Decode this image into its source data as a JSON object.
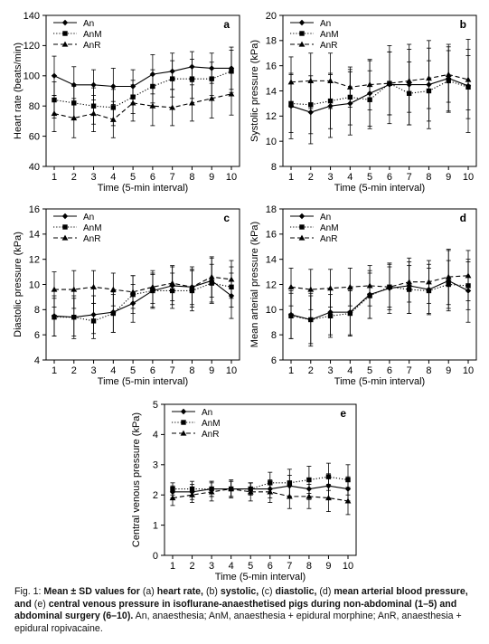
{
  "colors": {
    "ink": "#000000",
    "background": "#ffffff"
  },
  "caption": {
    "fig_label": "Fig. 1:",
    "bold1": "Mean ± SD values for",
    "t_a": "(a)",
    "bold2": "heart rate,",
    "t_b": "(b)",
    "bold3": "systolic,",
    "t_c": "(c)",
    "bold4": "diastolic,",
    "t_d": "(d)",
    "bold5": "mean arterial blood pressure, and",
    "t_e": "(e)",
    "bold6": "central venous pressure in isoflurane-anaesthetised pigs during non-abdominal (1–5) and abdominal surgery (6–10).",
    "tail": "An, anaesthesia; AnM, anaesthesia + epidural morphine; AnR, anaesthesia + epidural ropivacaine."
  },
  "chart_data": [
    {
      "panel": "a",
      "type": "line",
      "xlabel": "Time (5-min interval)",
      "ylabel": "Heart rate (beats/min)",
      "x": [
        1,
        2,
        3,
        4,
        5,
        6,
        7,
        8,
        9,
        10
      ],
      "ylim": [
        40,
        140
      ],
      "yticks": [
        40,
        60,
        80,
        100,
        120,
        140
      ],
      "legend": "top-left",
      "series": [
        {
          "name": "An",
          "marker": "diamond",
          "line": "solid",
          "values": [
            100,
            94,
            94,
            93,
            93,
            101,
            103,
            106,
            105,
            105
          ],
          "sd": [
            13,
            12,
            10,
            12,
            11,
            13,
            12,
            10,
            10,
            14
          ]
        },
        {
          "name": "AnM",
          "marker": "square",
          "line": "dotted",
          "values": [
            84,
            82,
            80,
            79,
            86,
            93,
            98,
            98,
            98,
            103
          ],
          "sd": [
            12,
            11,
            12,
            12,
            11,
            11,
            12,
            13,
            11,
            14
          ]
        },
        {
          "name": "AnR",
          "marker": "triangle",
          "line": "dashed",
          "values": [
            75,
            72,
            75,
            71,
            82,
            80,
            79,
            82,
            85,
            88
          ],
          "sd": [
            12,
            13,
            12,
            12,
            12,
            13,
            12,
            12,
            13,
            14
          ]
        }
      ]
    },
    {
      "panel": "b",
      "type": "line",
      "xlabel": "Time (5-min interval)",
      "ylabel": "Systolic pressure (kPa)",
      "x": [
        1,
        2,
        3,
        4,
        5,
        6,
        7,
        8,
        9,
        10
      ],
      "ylim": [
        8,
        20
      ],
      "yticks": [
        8,
        10,
        12,
        14,
        16,
        18,
        20
      ],
      "legend": "top-left",
      "series": [
        {
          "name": "An",
          "marker": "diamond",
          "line": "solid",
          "values": [
            12.8,
            12.3,
            12.8,
            13.0,
            13.8,
            14.5,
            14.5,
            14.5,
            15.0,
            14.4
          ],
          "sd": [
            2.6,
            2.5,
            2.5,
            2.5,
            2.6,
            3.1,
            3.2,
            3.5,
            2.7,
            3.7
          ]
        },
        {
          "name": "AnM",
          "marker": "square",
          "line": "dotted",
          "values": [
            13.0,
            12.9,
            13.2,
            13.5,
            13.3,
            14.6,
            13.8,
            14.0,
            14.8,
            14.3
          ],
          "sd": [
            2.3,
            2.3,
            2.2,
            2.2,
            2.3,
            2.5,
            2.5,
            2.4,
            2.4,
            2.5
          ]
        },
        {
          "name": "AnR",
          "marker": "triangle",
          "line": "dashed",
          "values": [
            14.7,
            14.8,
            14.8,
            14.3,
            14.5,
            14.6,
            14.8,
            15.0,
            15.3,
            14.9
          ],
          "sd": [
            2.0,
            2.2,
            2.2,
            1.6,
            2.0,
            2.5,
            2.5,
            2.4,
            2.2,
            2.4
          ]
        }
      ]
    },
    {
      "panel": "c",
      "type": "line",
      "xlabel": "Time (5-min interval)",
      "ylabel": "Diastolic pressure (kPa)",
      "x": [
        1,
        2,
        3,
        4,
        5,
        6,
        7,
        8,
        9,
        10
      ],
      "ylim": [
        4,
        16
      ],
      "yticks": [
        4,
        6,
        8,
        10,
        12,
        14,
        16
      ],
      "legend": "top-left",
      "series": [
        {
          "name": "An",
          "marker": "diamond",
          "line": "solid",
          "values": [
            7.5,
            7.4,
            7.6,
            7.8,
            8.5,
            9.5,
            9.9,
            9.8,
            10.3,
            9.1
          ],
          "sd": [
            1.6,
            1.7,
            1.5,
            1.6,
            1.5,
            1.4,
            1.5,
            1.6,
            1.8,
            1.8
          ]
        },
        {
          "name": "AnM",
          "marker": "square",
          "line": "dotted",
          "values": [
            7.4,
            7.4,
            7.1,
            7.7,
            9.2,
            9.5,
            9.5,
            9.5,
            10.1,
            9.8
          ],
          "sd": [
            1.5,
            1.5,
            1.4,
            1.5,
            1.5,
            1.3,
            1.4,
            1.6,
            1.5,
            1.6
          ]
        },
        {
          "name": "AnR",
          "marker": "triangle",
          "line": "dashed",
          "values": [
            9.6,
            9.6,
            9.8,
            9.6,
            9.4,
            9.8,
            10.1,
            9.8,
            10.6,
            10.4
          ],
          "sd": [
            1.4,
            1.5,
            1.3,
            1.3,
            1.3,
            1.3,
            1.4,
            1.4,
            1.6,
            1.5
          ]
        }
      ]
    },
    {
      "panel": "d",
      "type": "line",
      "xlabel": "Time (5-min interval)",
      "ylabel": "Mean arterial pressure (kPa)",
      "x": [
        1,
        2,
        3,
        4,
        5,
        6,
        7,
        8,
        9,
        10
      ],
      "ylim": [
        6,
        18
      ],
      "yticks": [
        6,
        8,
        10,
        12,
        14,
        16,
        18
      ],
      "legend": "top-left",
      "series": [
        {
          "name": "An",
          "marker": "diamond",
          "line": "solid",
          "values": [
            9.6,
            9.2,
            9.8,
            9.8,
            11.2,
            11.7,
            11.9,
            11.6,
            12.3,
            11.5
          ],
          "sd": [
            1.9,
            2.1,
            1.8,
            1.8,
            1.9,
            2.0,
            2.2,
            2.0,
            2.4,
            2.5
          ]
        },
        {
          "name": "AnM",
          "marker": "square",
          "line": "dotted",
          "values": [
            9.5,
            9.2,
            9.5,
            9.7,
            11.1,
            11.8,
            11.6,
            11.5,
            12.0,
            11.9
          ],
          "sd": [
            1.8,
            1.9,
            1.7,
            1.8,
            1.8,
            1.8,
            1.9,
            1.8,
            1.9,
            1.9
          ]
        },
        {
          "name": "AnR",
          "marker": "triangle",
          "line": "dashed",
          "values": [
            11.8,
            11.6,
            11.7,
            11.8,
            11.9,
            11.8,
            12.2,
            12.2,
            12.6,
            12.7
          ],
          "sd": [
            1.5,
            1.6,
            1.5,
            1.5,
            1.6,
            1.6,
            1.6,
            1.7,
            2.2,
            2.0
          ]
        }
      ]
    },
    {
      "panel": "e",
      "type": "line",
      "xlabel": "Time (5-min interval)",
      "ylabel": "Central venous pressure (kPa)",
      "x": [
        1,
        2,
        3,
        4,
        5,
        6,
        7,
        8,
        9,
        10
      ],
      "ylim": [
        0,
        5
      ],
      "yticks": [
        0,
        1,
        2,
        3,
        4,
        5
      ],
      "legend": "top-left",
      "series": [
        {
          "name": "An",
          "marker": "diamond",
          "line": "solid",
          "values": [
            2.1,
            2.1,
            2.2,
            2.2,
            2.2,
            2.2,
            2.3,
            2.2,
            2.3,
            2.2
          ],
          "sd": [
            0.2,
            0.25,
            0.25,
            0.25,
            0.2,
            0.3,
            0.35,
            0.35,
            0.4,
            0.4
          ]
        },
        {
          "name": "AnM",
          "marker": "square",
          "line": "dotted",
          "values": [
            2.2,
            2.2,
            2.2,
            2.2,
            2.2,
            2.4,
            2.4,
            2.5,
            2.6,
            2.5
          ],
          "sd": [
            0.2,
            0.25,
            0.25,
            0.25,
            0.2,
            0.35,
            0.45,
            0.45,
            0.45,
            0.5
          ]
        },
        {
          "name": "AnR",
          "marker": "triangle",
          "line": "dashed",
          "values": [
            1.9,
            2.0,
            2.1,
            2.2,
            2.1,
            2.1,
            1.95,
            1.95,
            1.9,
            1.8
          ],
          "sd": [
            0.25,
            0.25,
            0.3,
            0.3,
            0.3,
            0.35,
            0.4,
            0.4,
            0.45,
            0.45
          ]
        }
      ]
    }
  ]
}
